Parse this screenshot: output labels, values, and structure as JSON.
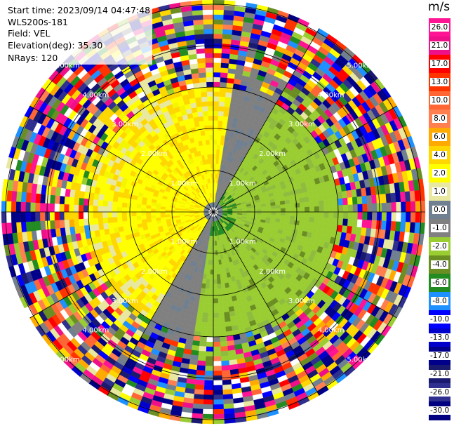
{
  "header": {
    "start_time": "Start time: 2023/09/14 04:47:48",
    "site": "WLS200s-181",
    "field": "Field: VEL",
    "elevation": "Elevation(deg): 35.30",
    "nrays": "NRays: 120"
  },
  "colorbar": {
    "unit": "m/s",
    "ticks": [
      "26.0",
      "21.0",
      "17.0",
      "13.0",
      "10.0",
      "8.0",
      "6.0",
      "4.0",
      "2.0",
      "1.0",
      "0.0",
      "-1.0",
      "-2.0",
      "-4.0",
      "-6.0",
      "-8.0",
      "-10.0",
      "-13.0",
      "-17.0",
      "-21.0",
      "-26.0",
      "-30.0"
    ],
    "colors": [
      "#ff1493",
      "#ee1088",
      "#ff0000",
      "#ff3300",
      "#ff6633",
      "#ff7f50",
      "#ffaa00",
      "#ffd700",
      "#ffff00",
      "#e8e8a0",
      "#708090",
      "#808080",
      "#9acd32",
      "#6b8e23",
      "#228b22",
      "#1e90ff",
      "#0000ff",
      "#0000cd",
      "#00008b",
      "#191970",
      "#2f2f8f",
      "#000080"
    ]
  },
  "range_rings": {
    "labels": [
      "1.00km",
      "2.00km",
      "3.00km",
      "4.00km",
      "5.00km"
    ]
  }
}
